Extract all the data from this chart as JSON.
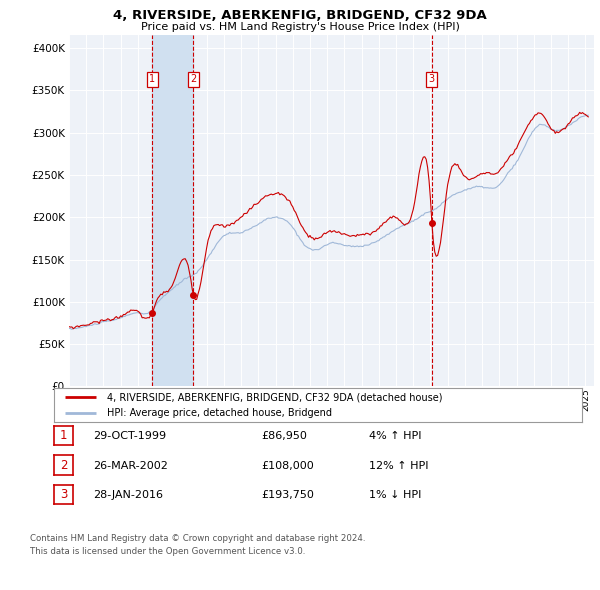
{
  "title": "4, RIVERSIDE, ABERKENFIG, BRIDGEND, CF32 9DA",
  "subtitle": "Price paid vs. HM Land Registry's House Price Index (HPI)",
  "ytick_values": [
    0,
    50000,
    100000,
    150000,
    200000,
    250000,
    300000,
    350000,
    400000
  ],
  "ylim": [
    0,
    415000
  ],
  "xlim_start": 1995.0,
  "xlim_end": 2025.5,
  "hpi_color": "#a0b8d8",
  "price_color": "#cc0000",
  "marker_color": "#cc0000",
  "vline_color": "#cc0000",
  "shade_color": "#d0e0f0",
  "legend_house_label": "4, RIVERSIDE, ABERKENFIG, BRIDGEND, CF32 9DA (detached house)",
  "legend_hpi_label": "HPI: Average price, detached house, Bridgend",
  "transactions": [
    {
      "num": 1,
      "date": "29-OCT-1999",
      "price": "£86,950",
      "hpi": "4% ↑ HPI",
      "year": 1999.83
    },
    {
      "num": 2,
      "date": "26-MAR-2002",
      "price": "£108,000",
      "hpi": "12% ↑ HPI",
      "year": 2002.23
    },
    {
      "num": 3,
      "date": "28-JAN-2016",
      "price": "£193,750",
      "hpi": "1% ↓ HPI",
      "year": 2016.08
    }
  ],
  "footer_line1": "Contains HM Land Registry data © Crown copyright and database right 2024.",
  "footer_line2": "This data is licensed under the Open Government Licence v3.0.",
  "background_color": "#ffffff",
  "plot_bg_color": "#eef2f8",
  "grid_color": "#ffffff"
}
